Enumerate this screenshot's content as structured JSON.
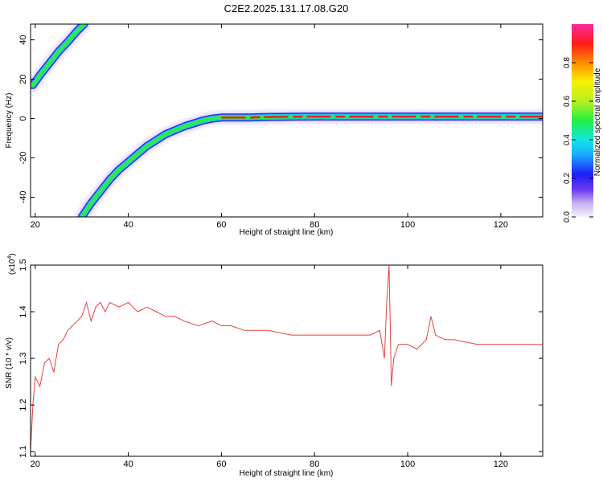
{
  "title": "C2E2.2025.131.17.08.G20",
  "colorbar": {
    "label": "Normalized spectral amplitude",
    "ticks": [
      "0.0",
      "0.2",
      "0.4",
      "0.6",
      "0.8"
    ],
    "tick_values": [
      0.0,
      0.2,
      0.4,
      0.6,
      0.8
    ],
    "range": [
      0,
      1
    ],
    "colormap": "rainbow: violet-blue-cyan-green-yellow-orange-red-magenta"
  },
  "chart_data": [
    {
      "type": "heatmap",
      "xlabel": "Height of straight line (km)",
      "ylabel": "Frequency (Hz)",
      "xlim": [
        19,
        129
      ],
      "ylim": [
        -50,
        48
      ],
      "x_ticks": [
        20,
        40,
        60,
        80,
        100,
        120
      ],
      "y_ticks": [
        -40,
        -20,
        0,
        20,
        40
      ],
      "ridges": [
        {
          "name": "",
          "points": [
            [
              19.5,
              17
            ],
            [
              21,
              22
            ],
            [
              23,
              28
            ],
            [
              25,
              34
            ],
            [
              27,
              39
            ],
            [
              29,
              44.5
            ],
            [
              30.5,
              48
            ]
          ]
        },
        {
          "name": "",
          "points": [
            [
              30,
              -50
            ],
            [
              32,
              -43
            ],
            [
              34,
              -37
            ],
            [
              36,
              -31
            ],
            [
              38,
              -26
            ],
            [
              40,
              -22
            ],
            [
              42,
              -18
            ],
            [
              44,
              -14
            ],
            [
              46,
              -11
            ],
            [
              48,
              -8
            ],
            [
              50,
              -6
            ],
            [
              52,
              -4
            ],
            [
              54,
              -2.5
            ],
            [
              56,
              -1
            ],
            [
              58,
              0
            ],
            [
              60,
              0.5
            ],
            [
              62,
              0.5
            ],
            [
              66,
              0.5
            ],
            [
              70,
              0.8
            ],
            [
              80,
              1
            ],
            [
              90,
              1
            ],
            [
              100,
              1
            ],
            [
              110,
              1
            ],
            [
              120,
              1
            ],
            [
              129,
              1
            ]
          ]
        }
      ]
    },
    {
      "type": "line",
      "xlabel": "Height of straight line (km)",
      "ylabel": "SNR (10 * v/v)",
      "y_exponent_label": "(x10",
      "y_exponent_power": "4",
      "y_exponent_close": ")",
      "xlim": [
        19,
        129
      ],
      "ylim": [
        1.09,
        1.5
      ],
      "x_ticks": [
        20,
        40,
        60,
        80,
        100,
        120
      ],
      "y_ticks": [
        1.1,
        1.2,
        1.3,
        1.4,
        1.5
      ],
      "series_color": "#e84040",
      "series": [
        {
          "name": "",
          "x": [
            19,
            19.5,
            20,
            21,
            22,
            23,
            24,
            25,
            26,
            27,
            28,
            29,
            30,
            31,
            32,
            33,
            34,
            35,
            36,
            38,
            40,
            42,
            44,
            46,
            48,
            50,
            52,
            55,
            58,
            60,
            62,
            65,
            68,
            70,
            75,
            80,
            85,
            90,
            92,
            94,
            95,
            95.5,
            96,
            96.5,
            97,
            98,
            100,
            102,
            104,
            105,
            106,
            108,
            110,
            115,
            120,
            125,
            129
          ],
          "values": [
            1.1,
            1.2,
            1.26,
            1.24,
            1.29,
            1.3,
            1.27,
            1.33,
            1.34,
            1.36,
            1.37,
            1.38,
            1.39,
            1.42,
            1.38,
            1.41,
            1.42,
            1.4,
            1.42,
            1.41,
            1.42,
            1.4,
            1.41,
            1.4,
            1.39,
            1.39,
            1.38,
            1.37,
            1.38,
            1.37,
            1.37,
            1.36,
            1.36,
            1.36,
            1.35,
            1.35,
            1.35,
            1.35,
            1.35,
            1.36,
            1.3,
            1.42,
            1.5,
            1.24,
            1.3,
            1.33,
            1.33,
            1.32,
            1.34,
            1.39,
            1.35,
            1.34,
            1.34,
            1.33,
            1.33,
            1.33,
            1.33
          ]
        }
      ]
    }
  ]
}
